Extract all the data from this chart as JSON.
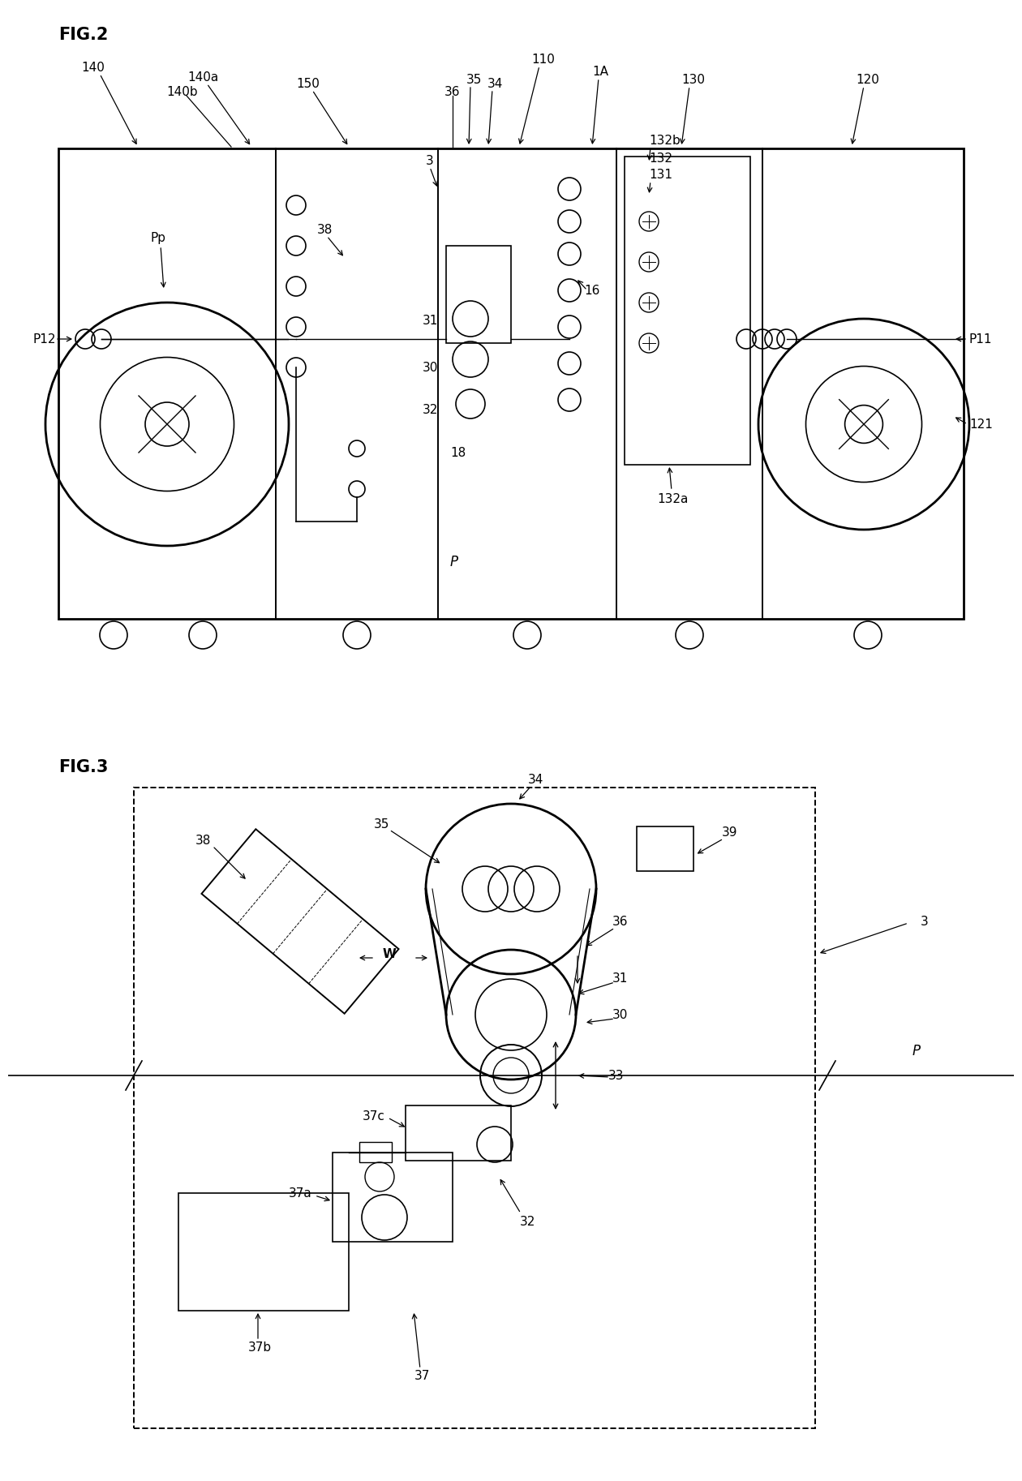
{
  "bg": "#ffffff",
  "lc": "#000000",
  "fig2_label": "FIG.2",
  "fig3_label": "FIG.3"
}
